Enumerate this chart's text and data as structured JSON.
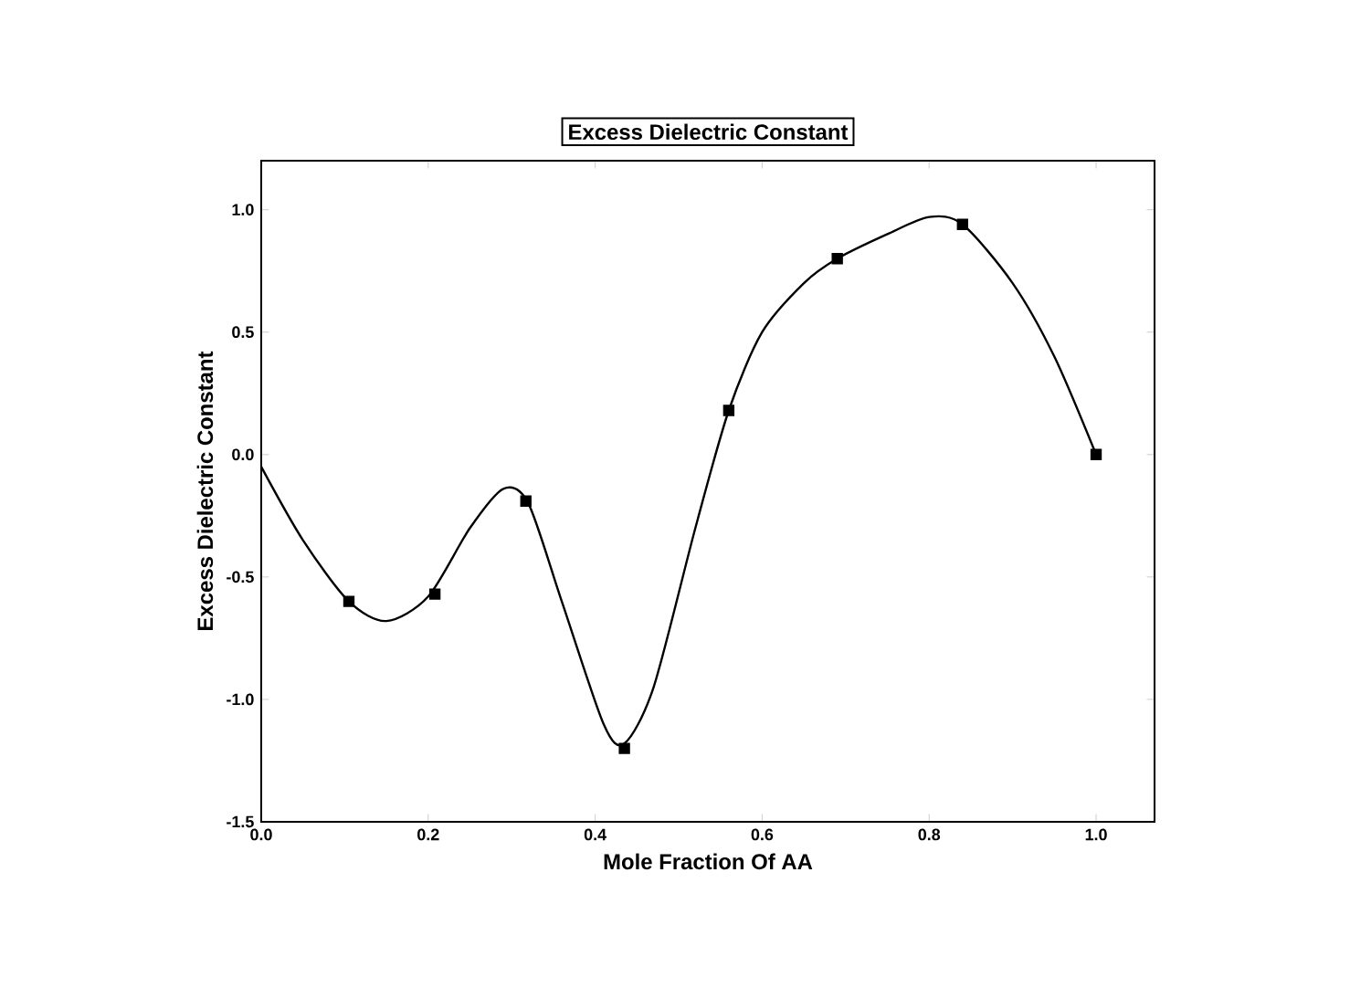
{
  "chart_data": {
    "type": "line",
    "title": "Excess Dielectric Constant",
    "xlabel": "Mole Fraction Of AA",
    "ylabel": "Excess Dielectric Constant",
    "xlim": [
      0,
      1.07
    ],
    "ylim": [
      -1.5,
      1.2
    ],
    "xticks": [
      {
        "value": 0,
        "label": "0.0"
      },
      {
        "value": 0.2,
        "label": "0.2"
      },
      {
        "value": 0.4,
        "label": "0.4"
      },
      {
        "value": 0.6,
        "label": "0.6"
      },
      {
        "value": 0.8,
        "label": "0.8"
      },
      {
        "value": 1.0,
        "label": "1.0"
      }
    ],
    "yticks": [
      {
        "value": -1.5,
        "label": "-1.5"
      },
      {
        "value": -1.0,
        "label": "-1.0"
      },
      {
        "value": -0.5,
        "label": "-0.5"
      },
      {
        "value": 0,
        "label": "0.0"
      },
      {
        "value": 0.5,
        "label": "0.5"
      },
      {
        "value": 1.0,
        "label": "1.0"
      }
    ],
    "series": [
      {
        "color": "#000000",
        "marker": "none",
        "x": [
          0,
          0.05,
          0.105,
          0.15,
          0.2,
          0.25,
          0.29,
          0.32,
          0.36,
          0.41,
          0.435,
          0.47,
          0.52,
          0.56,
          0.6,
          0.65,
          0.69,
          0.75,
          0.8,
          0.84,
          0.9,
          0.95,
          1.0
        ],
        "values": [
          -0.05,
          -0.35,
          -0.6,
          -0.68,
          -0.58,
          -0.3,
          -0.14,
          -0.2,
          -0.6,
          -1.1,
          -1.18,
          -0.95,
          -0.3,
          0.18,
          0.5,
          0.7,
          0.8,
          0.9,
          0.97,
          0.94,
          0.7,
          0.4,
          0.0
        ]
      },
      {
        "type": "scatter",
        "color": "#000000",
        "marker": "square",
        "x": [
          0.105,
          0.208,
          0.317,
          0.435,
          0.56,
          0.69,
          0.84,
          1.0
        ],
        "values": [
          -0.6,
          -0.57,
          -0.19,
          -1.2,
          0.18,
          0.8,
          0.94,
          0.0
        ]
      }
    ]
  }
}
